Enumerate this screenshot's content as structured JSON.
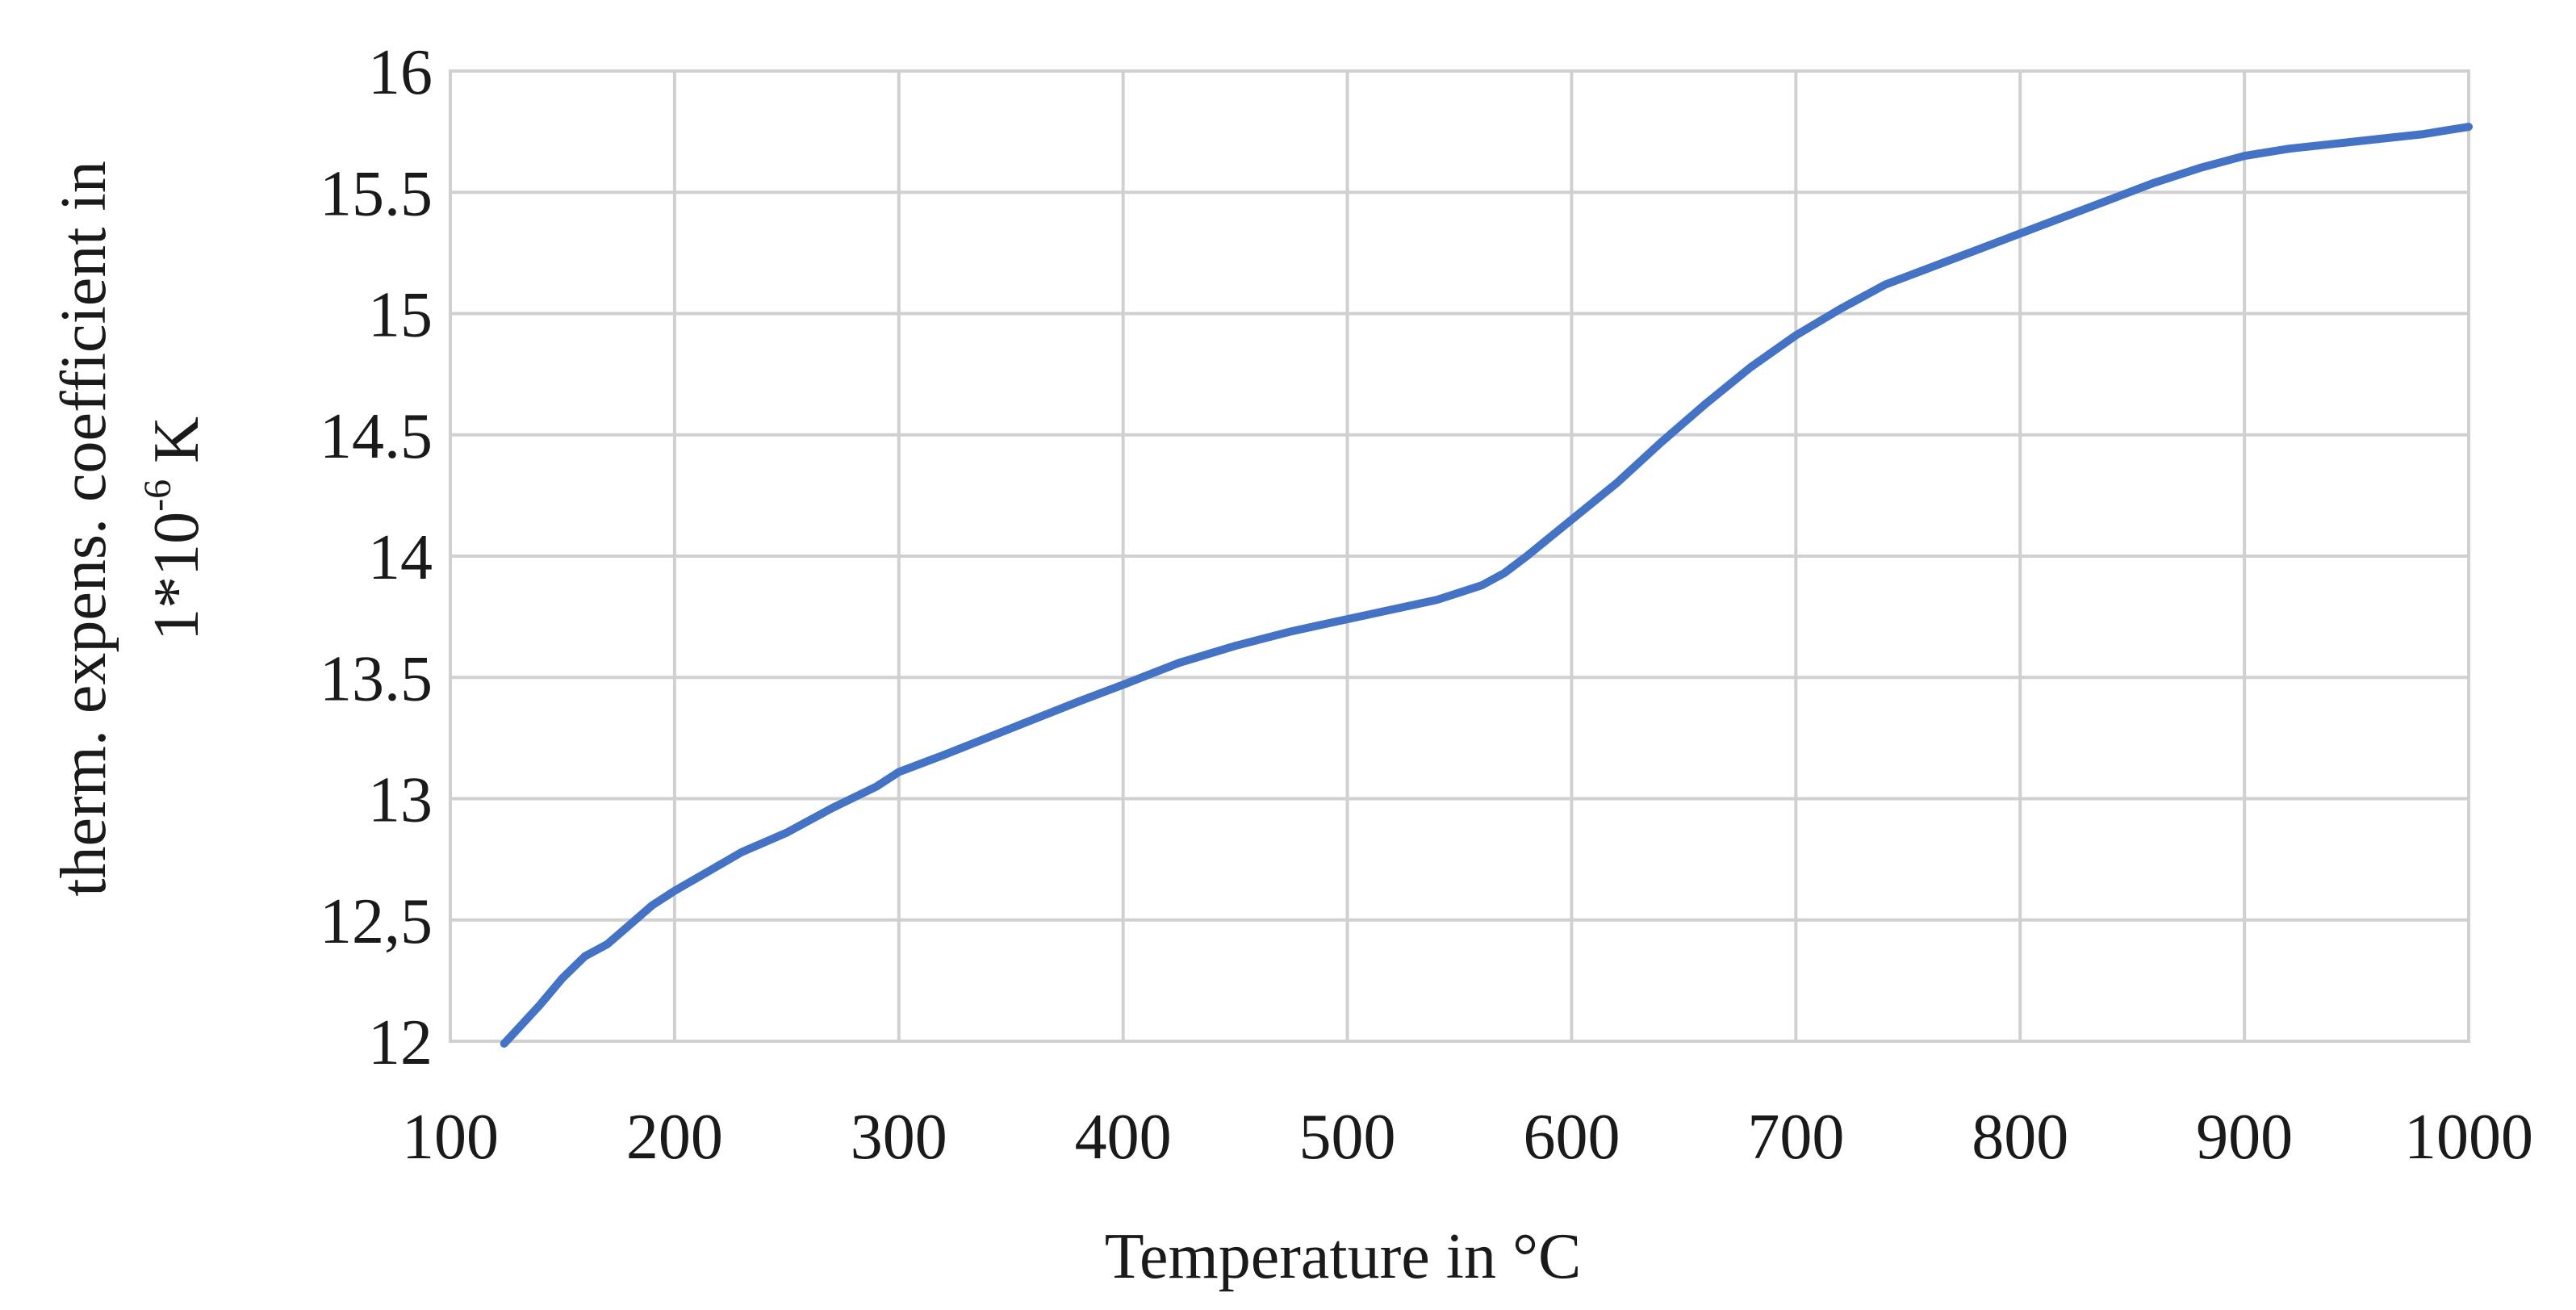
{
  "chart_data": {
    "type": "line",
    "title": "",
    "xlabel": "Temperature in °C",
    "ylabel": {
      "line1": "therm. expens. coefficient in",
      "line2_base": "1*10",
      "line2_exp": "-6",
      "line2_unit": " K"
    },
    "xlim": [
      100,
      1000
    ],
    "ylim": [
      12,
      16
    ],
    "x_ticks": [
      100,
      200,
      300,
      400,
      500,
      600,
      700,
      800,
      900,
      1000
    ],
    "x_tick_labels": [
      "100",
      "200",
      "300",
      "400",
      "500",
      "600",
      "700",
      "800",
      "900",
      "1000"
    ],
    "y_ticks": [
      12,
      12.5,
      13,
      13.5,
      14,
      14.5,
      15,
      15.5,
      16
    ],
    "y_tick_labels": [
      "12",
      "12,5",
      "13",
      "13.5",
      "14",
      "14.5",
      "15",
      "15.5",
      "16"
    ],
    "grid": true,
    "series": [
      {
        "name": "therm. expens. coefficient",
        "color": "#4472c4",
        "x": [
          124,
          130,
          140,
          150,
          160,
          170,
          180,
          190,
          200,
          215,
          230,
          250,
          270,
          290,
          300,
          320,
          350,
          380,
          400,
          425,
          450,
          475,
          500,
          520,
          540,
          560,
          570,
          580,
          600,
          620,
          640,
          660,
          680,
          700,
          720,
          740,
          760,
          780,
          800,
          820,
          840,
          860,
          880,
          900,
          920,
          940,
          960,
          980,
          1000
        ],
        "y": [
          11.99,
          12.05,
          12.15,
          12.26,
          12.35,
          12.4,
          12.48,
          12.56,
          12.62,
          12.7,
          12.78,
          12.86,
          12.96,
          13.05,
          13.11,
          13.18,
          13.29,
          13.4,
          13.47,
          13.56,
          13.63,
          13.69,
          13.74,
          13.78,
          13.82,
          13.88,
          13.93,
          14.0,
          14.15,
          14.3,
          14.47,
          14.63,
          14.78,
          14.91,
          15.02,
          15.12,
          15.19,
          15.26,
          15.33,
          15.4,
          15.47,
          15.54,
          15.6,
          15.65,
          15.68,
          15.7,
          15.72,
          15.74,
          15.77
        ]
      }
    ]
  }
}
